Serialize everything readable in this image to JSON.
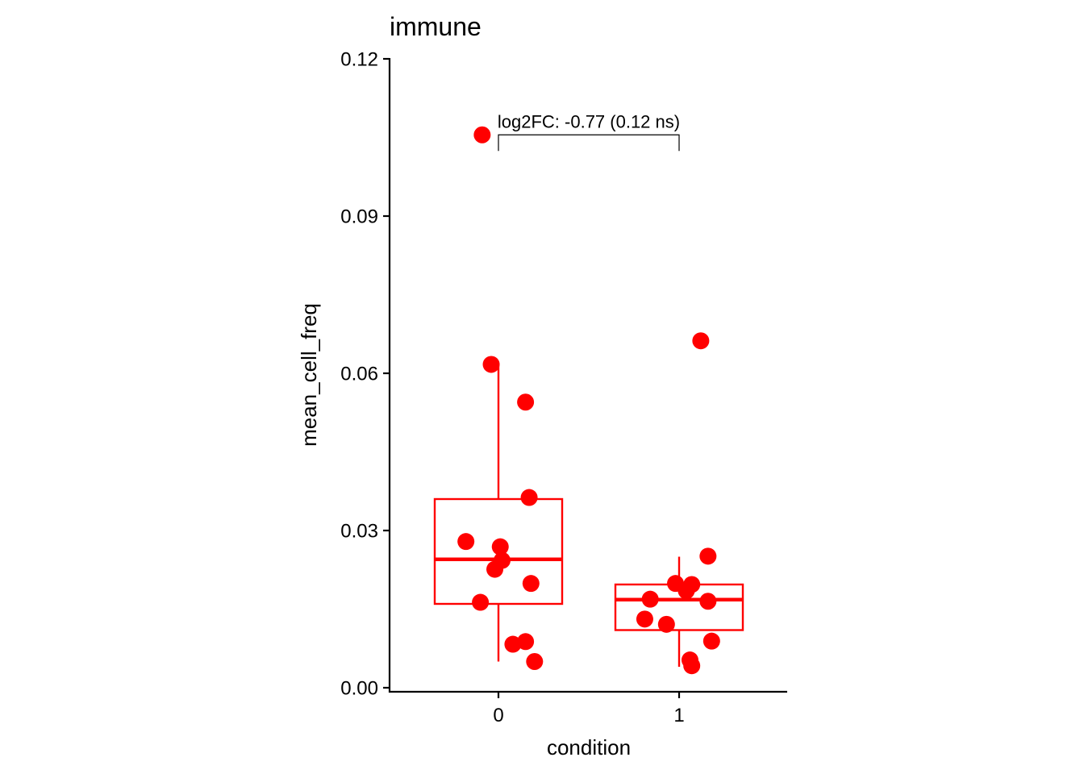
{
  "chart_data": {
    "type": "box",
    "title": "immune",
    "xlabel": "condition",
    "ylabel": "mean_cell_freq",
    "categories": [
      "0",
      "1"
    ],
    "ylim": [
      0,
      0.12
    ],
    "yticks": [
      0.0,
      0.03,
      0.06,
      0.09,
      0.12
    ],
    "ytick_labels": [
      "0.00",
      "0.03",
      "0.06",
      "0.09",
      "0.12"
    ],
    "grid": false,
    "color": "#ff0000",
    "boxes": [
      {
        "category": "0",
        "whisker_low": 0.005,
        "q1": 0.016,
        "median": 0.0245,
        "q3": 0.036,
        "whisker_high": 0.0615
      },
      {
        "category": "1",
        "whisker_low": 0.004,
        "q1": 0.011,
        "median": 0.0168,
        "q3": 0.0197,
        "whisker_high": 0.025
      }
    ],
    "points": [
      {
        "category": "0",
        "jitter": -0.09,
        "y": 0.1055
      },
      {
        "category": "0",
        "jitter": -0.04,
        "y": 0.0617
      },
      {
        "category": "0",
        "jitter": 0.15,
        "y": 0.0545
      },
      {
        "category": "0",
        "jitter": 0.17,
        "y": 0.0363
      },
      {
        "category": "0",
        "jitter": -0.18,
        "y": 0.0279
      },
      {
        "category": "0",
        "jitter": 0.01,
        "y": 0.0269
      },
      {
        "category": "0",
        "jitter": 0.02,
        "y": 0.0243
      },
      {
        "category": "0",
        "jitter": -0.02,
        "y": 0.0226
      },
      {
        "category": "0",
        "jitter": 0.18,
        "y": 0.0199
      },
      {
        "category": "0",
        "jitter": -0.1,
        "y": 0.0163
      },
      {
        "category": "0",
        "jitter": 0.15,
        "y": 0.0088
      },
      {
        "category": "0",
        "jitter": 0.08,
        "y": 0.0083
      },
      {
        "category": "0",
        "jitter": 0.2,
        "y": 0.005
      },
      {
        "category": "1",
        "jitter": 0.12,
        "y": 0.0662
      },
      {
        "category": "1",
        "jitter": 0.16,
        "y": 0.0251
      },
      {
        "category": "1",
        "jitter": -0.02,
        "y": 0.0199
      },
      {
        "category": "1",
        "jitter": 0.07,
        "y": 0.0197
      },
      {
        "category": "1",
        "jitter": 0.04,
        "y": 0.0185
      },
      {
        "category": "1",
        "jitter": -0.16,
        "y": 0.0169
      },
      {
        "category": "1",
        "jitter": 0.16,
        "y": 0.0165
      },
      {
        "category": "1",
        "jitter": -0.07,
        "y": 0.0121
      },
      {
        "category": "1",
        "jitter": -0.19,
        "y": 0.0131
      },
      {
        "category": "1",
        "jitter": 0.18,
        "y": 0.0089
      },
      {
        "category": "1",
        "jitter": 0.06,
        "y": 0.0053
      },
      {
        "category": "1",
        "jitter": 0.07,
        "y": 0.0042
      }
    ],
    "comparison": {
      "from": "0",
      "to": "1",
      "y": 0.1055,
      "label": "log2FC: -0.77 (0.12 ns)"
    }
  }
}
